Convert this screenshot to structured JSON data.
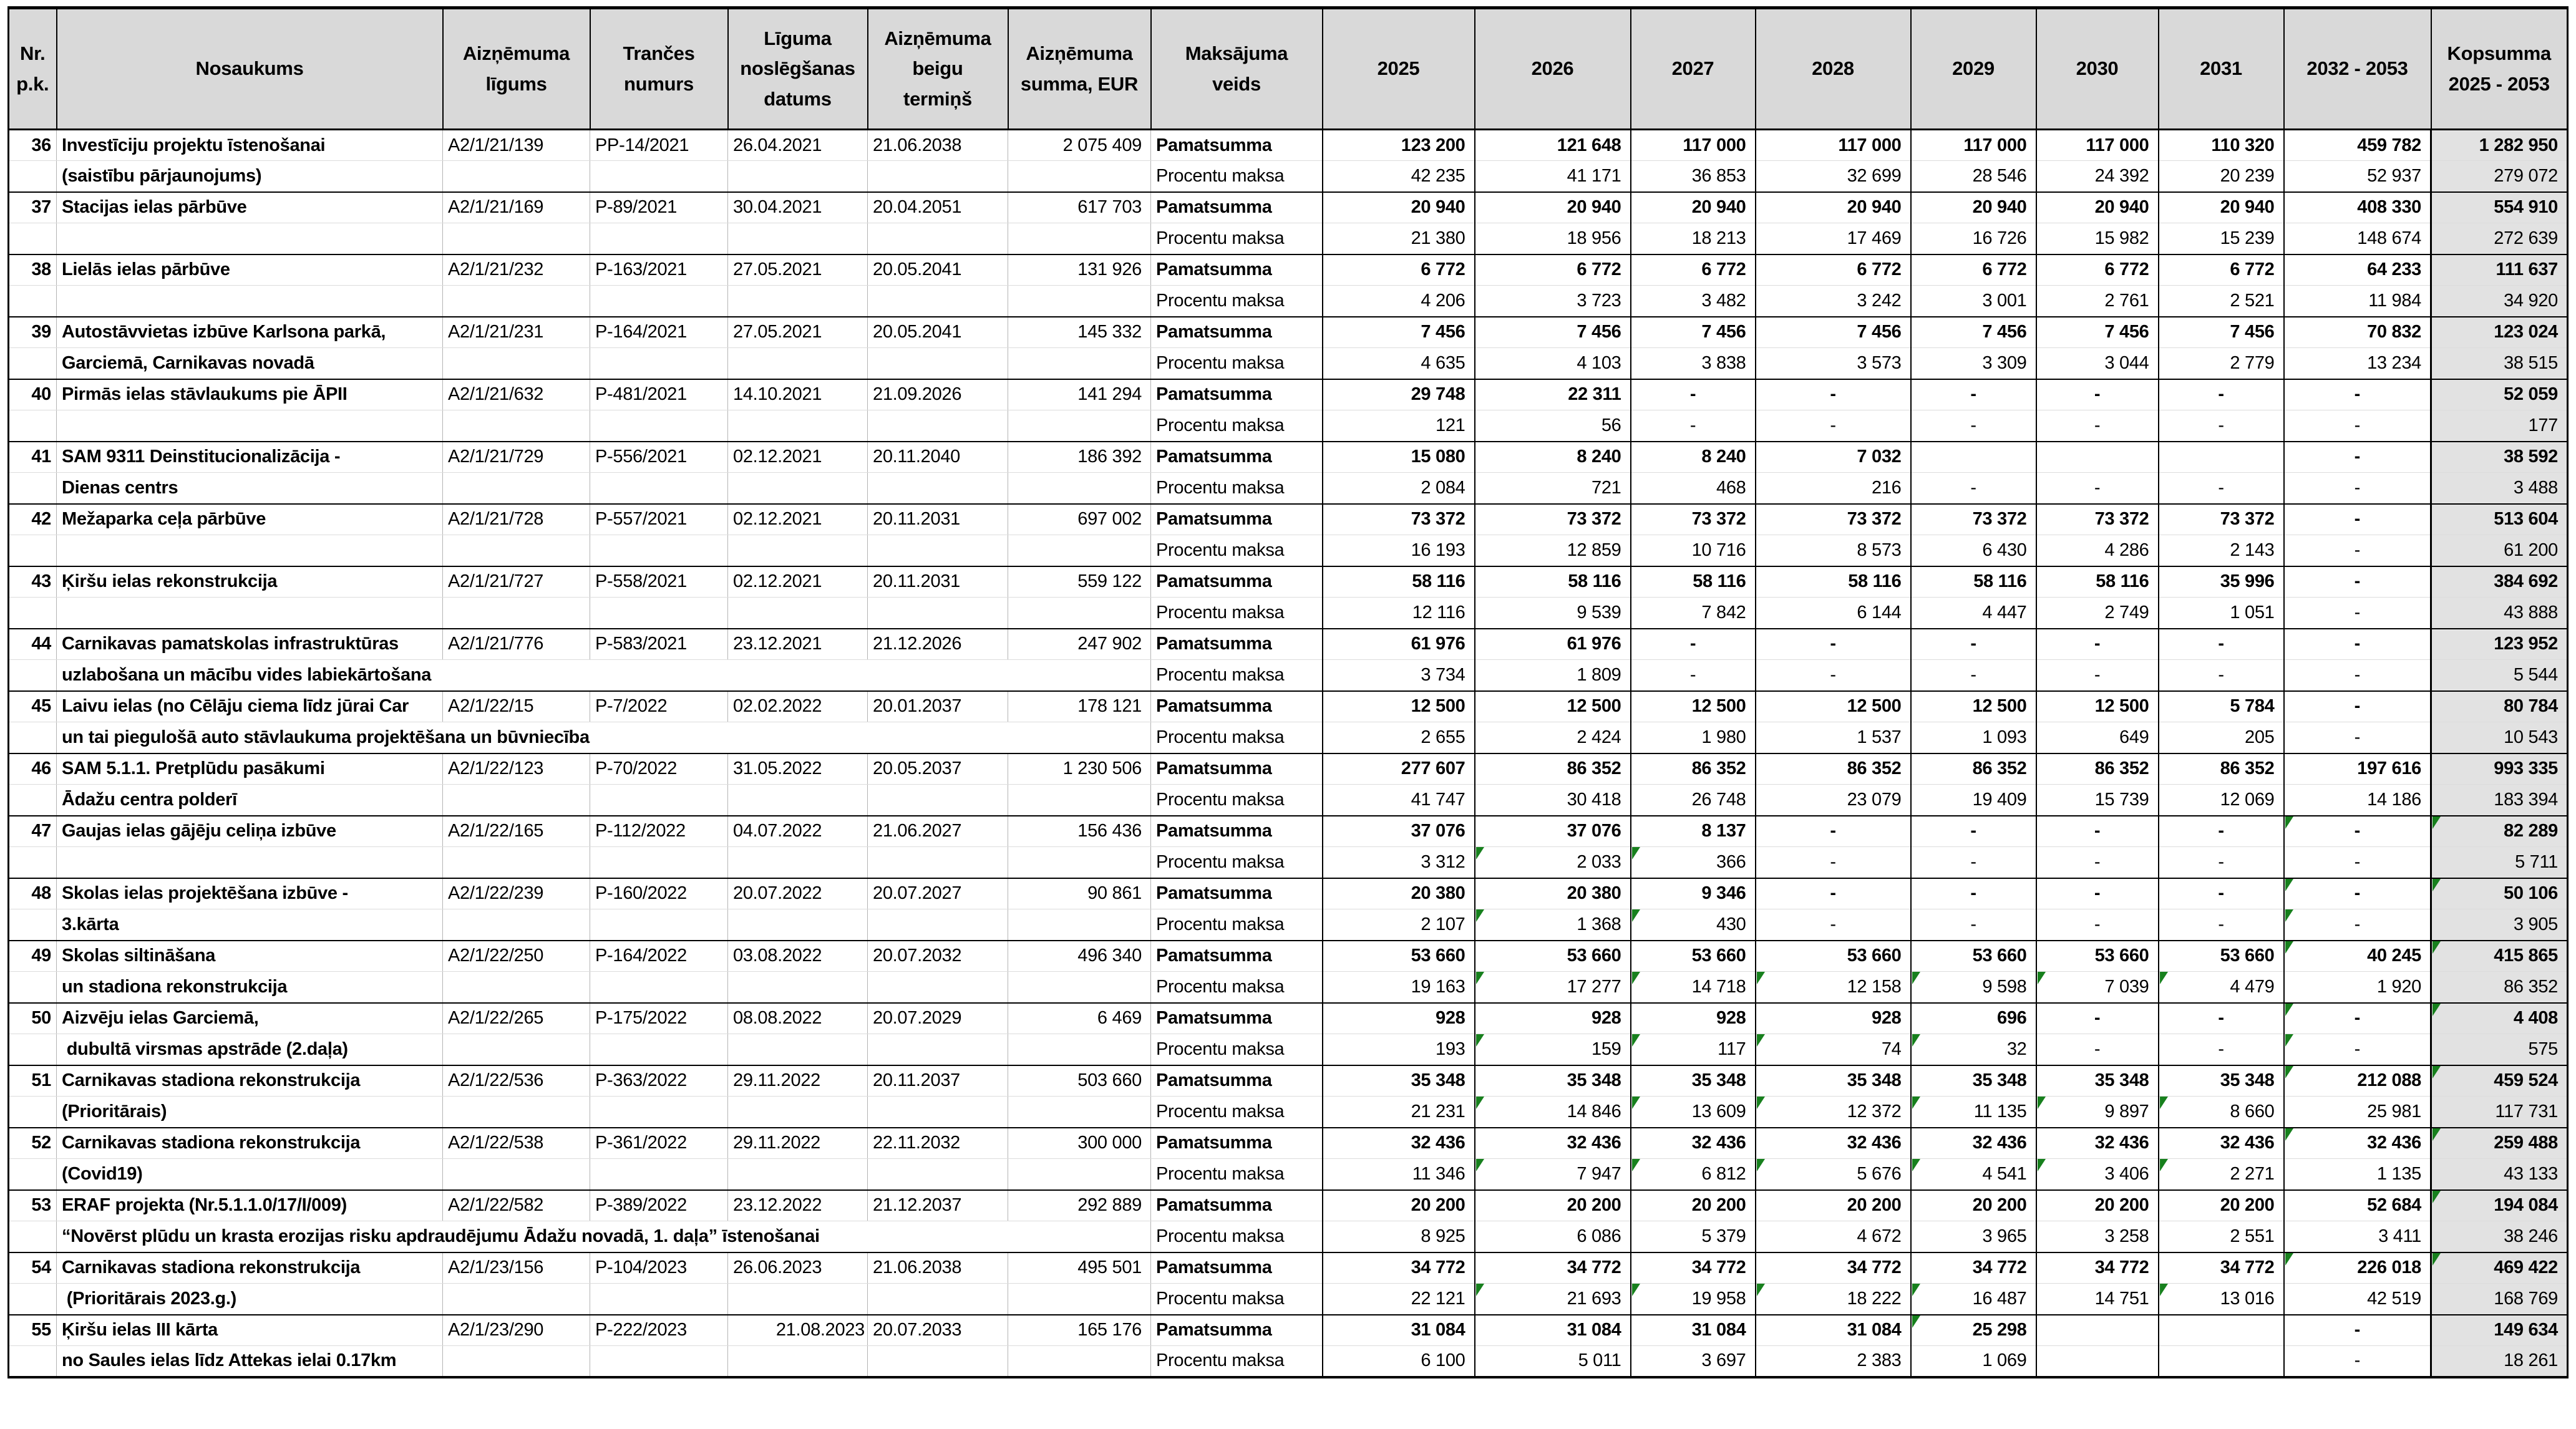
{
  "table": {
    "headers": {
      "nr": "Nr.\np.k.",
      "name": "Nosaukums",
      "contract": "Aizņēmuma\nlīgums",
      "tranche": "Trančes\nnumurs",
      "signed": "Līguma\nnoslēgšanas\ndatums",
      "end": "Aizņēmuma\nbeigu\ntermiņš",
      "amount": "Aizņēmuma\nsumma, EUR",
      "ptype": "Maksājuma\nveids",
      "years": [
        "2025",
        "2026",
        "2027",
        "2028",
        "2029",
        "2030",
        "2031",
        "2032 - 2053"
      ],
      "total": "Kopsumma\n2025 - 2053"
    },
    "payment_types": {
      "principal": "Pamatsumma",
      "interest": "Procentu maksa"
    },
    "colors": {
      "header_bg": "#d9d9d9",
      "total_col_bg": "#e2e2e2",
      "flag_green": "#17801d",
      "grid_gray": "#b3b3b3"
    },
    "rows": [
      {
        "nr": "36",
        "name1": "Investīciju projektu īstenošanai",
        "name2": "(saistību pārjaunojums)",
        "contract": "A2/1/21/139",
        "tranche": "PP-14/2021",
        "signed": "26.04.2021",
        "end": "21.06.2038",
        "amount": "2 075 409",
        "principal": [
          "123 200",
          "121 648",
          "117 000",
          "117 000",
          "117 000",
          "117 000",
          "110 320",
          "459 782",
          "1 282 950"
        ],
        "interest": [
          "42 235",
          "41 171",
          "36 853",
          "32 699",
          "28 546",
          "24 392",
          "20 239",
          "52 937",
          "279 072"
        ],
        "principal_flags": [],
        "interest_flags": [],
        "name2_overflow": false
      },
      {
        "nr": "37",
        "name1": "Stacijas ielas pārbūve",
        "name2": "",
        "contract": "A2/1/21/169",
        "tranche": "P-89/2021",
        "signed": "30.04.2021",
        "end": "20.04.2051",
        "amount": "617 703",
        "principal": [
          "20 940",
          "20 940",
          "20 940",
          "20 940",
          "20 940",
          "20 940",
          "20 940",
          "408 330",
          "554 910"
        ],
        "interest": [
          "21 380",
          "18 956",
          "18 213",
          "17 469",
          "16 726",
          "15 982",
          "15 239",
          "148 674",
          "272 639"
        ],
        "principal_flags": [],
        "interest_flags": [],
        "name2_overflow": false
      },
      {
        "nr": "38",
        "name1": "Lielās ielas pārbūve",
        "name2": "",
        "contract": "A2/1/21/232",
        "tranche": "P-163/2021",
        "signed": "27.05.2021",
        "end": "20.05.2041",
        "amount": "131 926",
        "principal": [
          "6 772",
          "6 772",
          "6 772",
          "6 772",
          "6 772",
          "6 772",
          "6 772",
          "64 233",
          "111 637"
        ],
        "interest": [
          "4 206",
          "3 723",
          "3 482",
          "3 242",
          "3 001",
          "2 761",
          "2 521",
          "11 984",
          "34 920"
        ],
        "principal_flags": [],
        "interest_flags": [],
        "name2_overflow": false
      },
      {
        "nr": "39",
        "name1": "Autostāvvietas izbūve Karlsona parkā,",
        "name2": "Garciemā, Carnikavas novadā",
        "contract": "A2/1/21/231",
        "tranche": "P-164/2021",
        "signed": "27.05.2021",
        "end": "20.05.2041",
        "amount": "145 332",
        "principal": [
          "7 456",
          "7 456",
          "7 456",
          "7 456",
          "7 456",
          "7 456",
          "7 456",
          "70 832",
          "123 024"
        ],
        "interest": [
          "4 635",
          "4 103",
          "3 838",
          "3 573",
          "3 309",
          "3 044",
          "2 779",
          "13 234",
          "38 515"
        ],
        "principal_flags": [],
        "interest_flags": [],
        "name2_overflow": false
      },
      {
        "nr": "40",
        "name1": "Pirmās ielas stāvlaukums pie ĀPII",
        "name2": "",
        "contract": "A2/1/21/632",
        "tranche": "P-481/2021",
        "signed": "14.10.2021",
        "end": "21.09.2026",
        "amount": "141 294",
        "principal": [
          "29 748",
          "22 311",
          "-",
          "-",
          "-",
          "-",
          "-",
          "-",
          "52 059"
        ],
        "interest": [
          "121",
          "56",
          "-",
          "-",
          "-",
          "-",
          "-",
          "-",
          "177"
        ],
        "principal_flags": [],
        "interest_flags": [],
        "name2_overflow": false
      },
      {
        "nr": "41",
        "name1": "SAM 9311 Deinstitucionalizācija -",
        "name2": "Dienas centrs",
        "contract": "A2/1/21/729",
        "tranche": "P-556/2021",
        "signed": "02.12.2021",
        "end": "20.11.2040",
        "amount": "186 392",
        "principal": [
          "15 080",
          "8 240",
          "8 240",
          "7 032",
          "",
          "",
          "",
          "-",
          "38 592"
        ],
        "interest": [
          "2 084",
          "721",
          "468",
          "216",
          "-",
          "-",
          "-",
          "-",
          "3 488"
        ],
        "principal_flags": [],
        "interest_flags": [],
        "name2_overflow": false
      },
      {
        "nr": "42",
        "name1": "Mežaparka ceļa pārbūve",
        "name2": "",
        "contract": "A2/1/21/728",
        "tranche": "P-557/2021",
        "signed": "02.12.2021",
        "end": "20.11.2031",
        "amount": "697 002",
        "principal": [
          "73 372",
          "73 372",
          "73 372",
          "73 372",
          "73 372",
          "73 372",
          "73 372",
          "-",
          "513 604"
        ],
        "interest": [
          "16 193",
          "12 859",
          "10 716",
          "8 573",
          "6 430",
          "4 286",
          "2 143",
          "-",
          "61 200"
        ],
        "principal_flags": [],
        "interest_flags": [],
        "name2_overflow": false
      },
      {
        "nr": "43",
        "name1": "Ķiršu ielas rekonstrukcija",
        "name2": "",
        "contract": "A2/1/21/727",
        "tranche": "P-558/2021",
        "signed": "02.12.2021",
        "end": "20.11.2031",
        "amount": "559 122",
        "principal": [
          "58 116",
          "58 116",
          "58 116",
          "58 116",
          "58 116",
          "58 116",
          "35 996",
          "-",
          "384 692"
        ],
        "interest": [
          "12 116",
          "9 539",
          "7 842",
          "6 144",
          "4 447",
          "2 749",
          "1 051",
          "-",
          "43 888"
        ],
        "principal_flags": [],
        "interest_flags": [],
        "name2_overflow": false
      },
      {
        "nr": "44",
        "name1": "Carnikavas pamatskolas infrastruktūras",
        "name2": "uzlabošana un mācību vides labiekārtošana",
        "contract": "A2/1/21/776",
        "tranche": "P-583/2021",
        "signed": "23.12.2021",
        "end": "21.12.2026",
        "amount": "247 902",
        "principal": [
          "61 976",
          "61 976",
          "-",
          "-",
          "-",
          "-",
          "-",
          "-",
          "123 952"
        ],
        "interest": [
          "3 734",
          "1 809",
          "-",
          "-",
          "-",
          "-",
          "-",
          "-",
          "5 544"
        ],
        "principal_flags": [],
        "interest_flags": [],
        "name2_overflow": true
      },
      {
        "nr": "45",
        "name1": "Laivu ielas (no Cēlāju ciema līdz jūrai Car",
        "name2": "un tai piegulošā auto stāvlaukuma projektēšana un būvniecība",
        "contract": "A2/1/22/15",
        "tranche": "P-7/2022",
        "signed": "02.02.2022",
        "end": "20.01.2037",
        "amount": "178 121",
        "principal": [
          "12 500",
          "12 500",
          "12 500",
          "12 500",
          "12 500",
          "12 500",
          "5 784",
          "-",
          "80 784"
        ],
        "interest": [
          "2 655",
          "2 424",
          "1 980",
          "1 537",
          "1 093",
          "649",
          "205",
          "-",
          "10 543"
        ],
        "principal_flags": [],
        "interest_flags": [],
        "name2_overflow": true
      },
      {
        "nr": "46",
        "name1": "SAM 5.1.1. Pretplūdu pasākumi",
        "name2": "Ādažu centra polderī",
        "contract": "A2/1/22/123",
        "tranche": "P-70/2022",
        "signed": "31.05.2022",
        "end": "20.05.2037",
        "amount": "1 230 506",
        "principal": [
          "277 607",
          "86 352",
          "86 352",
          "86 352",
          "86 352",
          "86 352",
          "86 352",
          "197 616",
          "993 335"
        ],
        "interest": [
          "41 747",
          "30 418",
          "26 748",
          "23 079",
          "19 409",
          "15 739",
          "12 069",
          "14 186",
          "183 394"
        ],
        "principal_flags": [],
        "interest_flags": [],
        "name2_overflow": false
      },
      {
        "nr": "47",
        "name1": "Gaujas ielas gājēju celiņa izbūve",
        "name2": "",
        "contract": "A2/1/22/165",
        "tranche": "P-112/2022",
        "signed": "04.07.2022",
        "end": "21.06.2027",
        "amount": "156 436",
        "principal": [
          "37 076",
          "37 076",
          "8 137",
          "-",
          "-",
          "-",
          "-",
          "-",
          "82 289"
        ],
        "interest": [
          "3 312",
          "2 033",
          "366",
          "-",
          "-",
          "-",
          "-",
          "-",
          "5 711"
        ],
        "principal_flags": [
          7,
          8
        ],
        "interest_flags": [
          1,
          2
        ],
        "name2_overflow": false
      },
      {
        "nr": "48",
        "name1": "Skolas ielas projektēšana izbūve -",
        "name2": "3.kārta",
        "contract": "A2/1/22/239",
        "tranche": "P-160/2022",
        "signed": "20.07.2022",
        "end": "20.07.2027",
        "amount": "90 861",
        "principal": [
          "20 380",
          "20 380",
          "9 346",
          "-",
          "-",
          "-",
          "-",
          "-",
          "50 106"
        ],
        "interest": [
          "2 107",
          "1 368",
          "430",
          "-",
          "-",
          "-",
          "-",
          "-",
          "3 905"
        ],
        "principal_flags": [
          7,
          8
        ],
        "interest_flags": [
          1,
          2,
          7
        ],
        "name2_overflow": false
      },
      {
        "nr": "49",
        "name1": "Skolas siltināšana",
        "name2": "un stadiona rekonstrukcija",
        "contract": "A2/1/22/250",
        "tranche": "P-164/2022",
        "signed": "03.08.2022",
        "end": "20.07.2032",
        "amount": "496 340",
        "principal": [
          "53 660",
          "53 660",
          "53 660",
          "53 660",
          "53 660",
          "53 660",
          "53 660",
          "40 245",
          "415 865"
        ],
        "interest": [
          "19 163",
          "17 277",
          "14 718",
          "12 158",
          "9 598",
          "7 039",
          "4 479",
          "1 920",
          "86 352"
        ],
        "principal_flags": [
          7,
          8
        ],
        "interest_flags": [
          1,
          2,
          3,
          4,
          5,
          6
        ],
        "name2_overflow": false
      },
      {
        "nr": "50",
        "name1": "Aizvēju ielas Garciemā,",
        "name2": " dubultā virsmas apstrāde (2.daļa)",
        "contract": "A2/1/22/265",
        "tranche": "P-175/2022",
        "signed": "08.08.2022",
        "end": "20.07.2029",
        "amount": "6 469",
        "principal": [
          "928",
          "928",
          "928",
          "928",
          "696",
          "-",
          "-",
          "-",
          "4 408"
        ],
        "interest": [
          "193",
          "159",
          "117",
          "74",
          "32",
          "-",
          "-",
          "-",
          "575"
        ],
        "principal_flags": [
          7,
          8
        ],
        "interest_flags": [
          1,
          2,
          3,
          4,
          7
        ],
        "name2_overflow": false
      },
      {
        "nr": "51",
        "name1": "Carnikavas stadiona rekonstrukcija",
        "name2": "(Prioritārais)",
        "contract": "A2/1/22/536",
        "tranche": "P-363/2022",
        "signed": "29.11.2022",
        "end": "20.11.2037",
        "amount": "503 660",
        "principal": [
          "35 348",
          "35 348",
          "35 348",
          "35 348",
          "35 348",
          "35 348",
          "35 348",
          "212 088",
          "459 524"
        ],
        "interest": [
          "21 231",
          "14 846",
          "13 609",
          "12 372",
          "11 135",
          "9 897",
          "8 660",
          "25 981",
          "117 731"
        ],
        "principal_flags": [
          7,
          8
        ],
        "interest_flags": [
          1,
          2,
          3,
          4,
          5,
          6
        ],
        "name2_overflow": false
      },
      {
        "nr": "52",
        "name1": "Carnikavas stadiona rekonstrukcija",
        "name2": "(Covid19)",
        "contract": "A2/1/22/538",
        "tranche": "P-361/2022",
        "signed": "29.11.2022",
        "end": "22.11.2032",
        "amount": "300 000",
        "principal": [
          "32 436",
          "32 436",
          "32 436",
          "32 436",
          "32 436",
          "32 436",
          "32 436",
          "32 436",
          "259 488"
        ],
        "interest": [
          "11 346",
          "7 947",
          "6 812",
          "5 676",
          "4 541",
          "3 406",
          "2 271",
          "1 135",
          "43 133"
        ],
        "principal_flags": [
          7,
          8
        ],
        "interest_flags": [
          1,
          2,
          3,
          4,
          5,
          6
        ],
        "name2_overflow": false
      },
      {
        "nr": "53",
        "name1": "ERAF projekta (Nr.5.1.1.0/17/I/009)",
        "name2": "“Novērst plūdu un krasta erozijas risku apdraudējumu Ādažu novadā, 1. daļa” īstenošanai",
        "contract": "A2/1/22/582",
        "tranche": "P-389/2022",
        "signed": "23.12.2022",
        "end": "21.12.2037",
        "amount": "292 889",
        "principal": [
          "20 200",
          "20 200",
          "20 200",
          "20 200",
          "20 200",
          "20 200",
          "20 200",
          "52 684",
          "194 084"
        ],
        "interest": [
          "8 925",
          "6 086",
          "5 379",
          "4 672",
          "3 965",
          "3 258",
          "2 551",
          "3 411",
          "38 246"
        ],
        "principal_flags": [
          8
        ],
        "interest_flags": [],
        "name2_overflow": true
      },
      {
        "nr": "54",
        "name1": "Carnikavas stadiona rekonstrukcija",
        "name2": " (Prioritārais 2023.g.)",
        "contract": "A2/1/23/156",
        "tranche": "P-104/2023",
        "signed": "26.06.2023",
        "end": "21.06.2038",
        "amount": "495 501",
        "principal": [
          "34 772",
          "34 772",
          "34 772",
          "34 772",
          "34 772",
          "34 772",
          "34 772",
          "226 018",
          "469 422"
        ],
        "interest": [
          "22 121",
          "21 693",
          "19 958",
          "18 222",
          "16 487",
          "14 751",
          "13 016",
          "42 519",
          "168 769"
        ],
        "principal_flags": [
          7,
          8
        ],
        "interest_flags": [
          1,
          2,
          3,
          4,
          6
        ],
        "name2_overflow": false
      },
      {
        "nr": "55",
        "name1": "Ķiršu ielas III kārta",
        "name2": "no Saules ielas līdz Attekas ielai 0.17km",
        "contract": "A2/1/23/290",
        "tranche": "P-222/2023",
        "signed": "21.08.2023",
        "end": "20.07.2033",
        "amount": "165 176",
        "signed_align": "right",
        "principal": [
          "31 084",
          "31 084",
          "31 084",
          "31 084",
          "25 298",
          "",
          "",
          "-",
          "149 634"
        ],
        "interest": [
          "6 100",
          "5 011",
          "3 697",
          "2 383",
          "1 069",
          "",
          "",
          "-",
          "18 261"
        ],
        "principal_flags": [
          4
        ],
        "interest_flags": [],
        "name2_overflow": false
      }
    ]
  }
}
